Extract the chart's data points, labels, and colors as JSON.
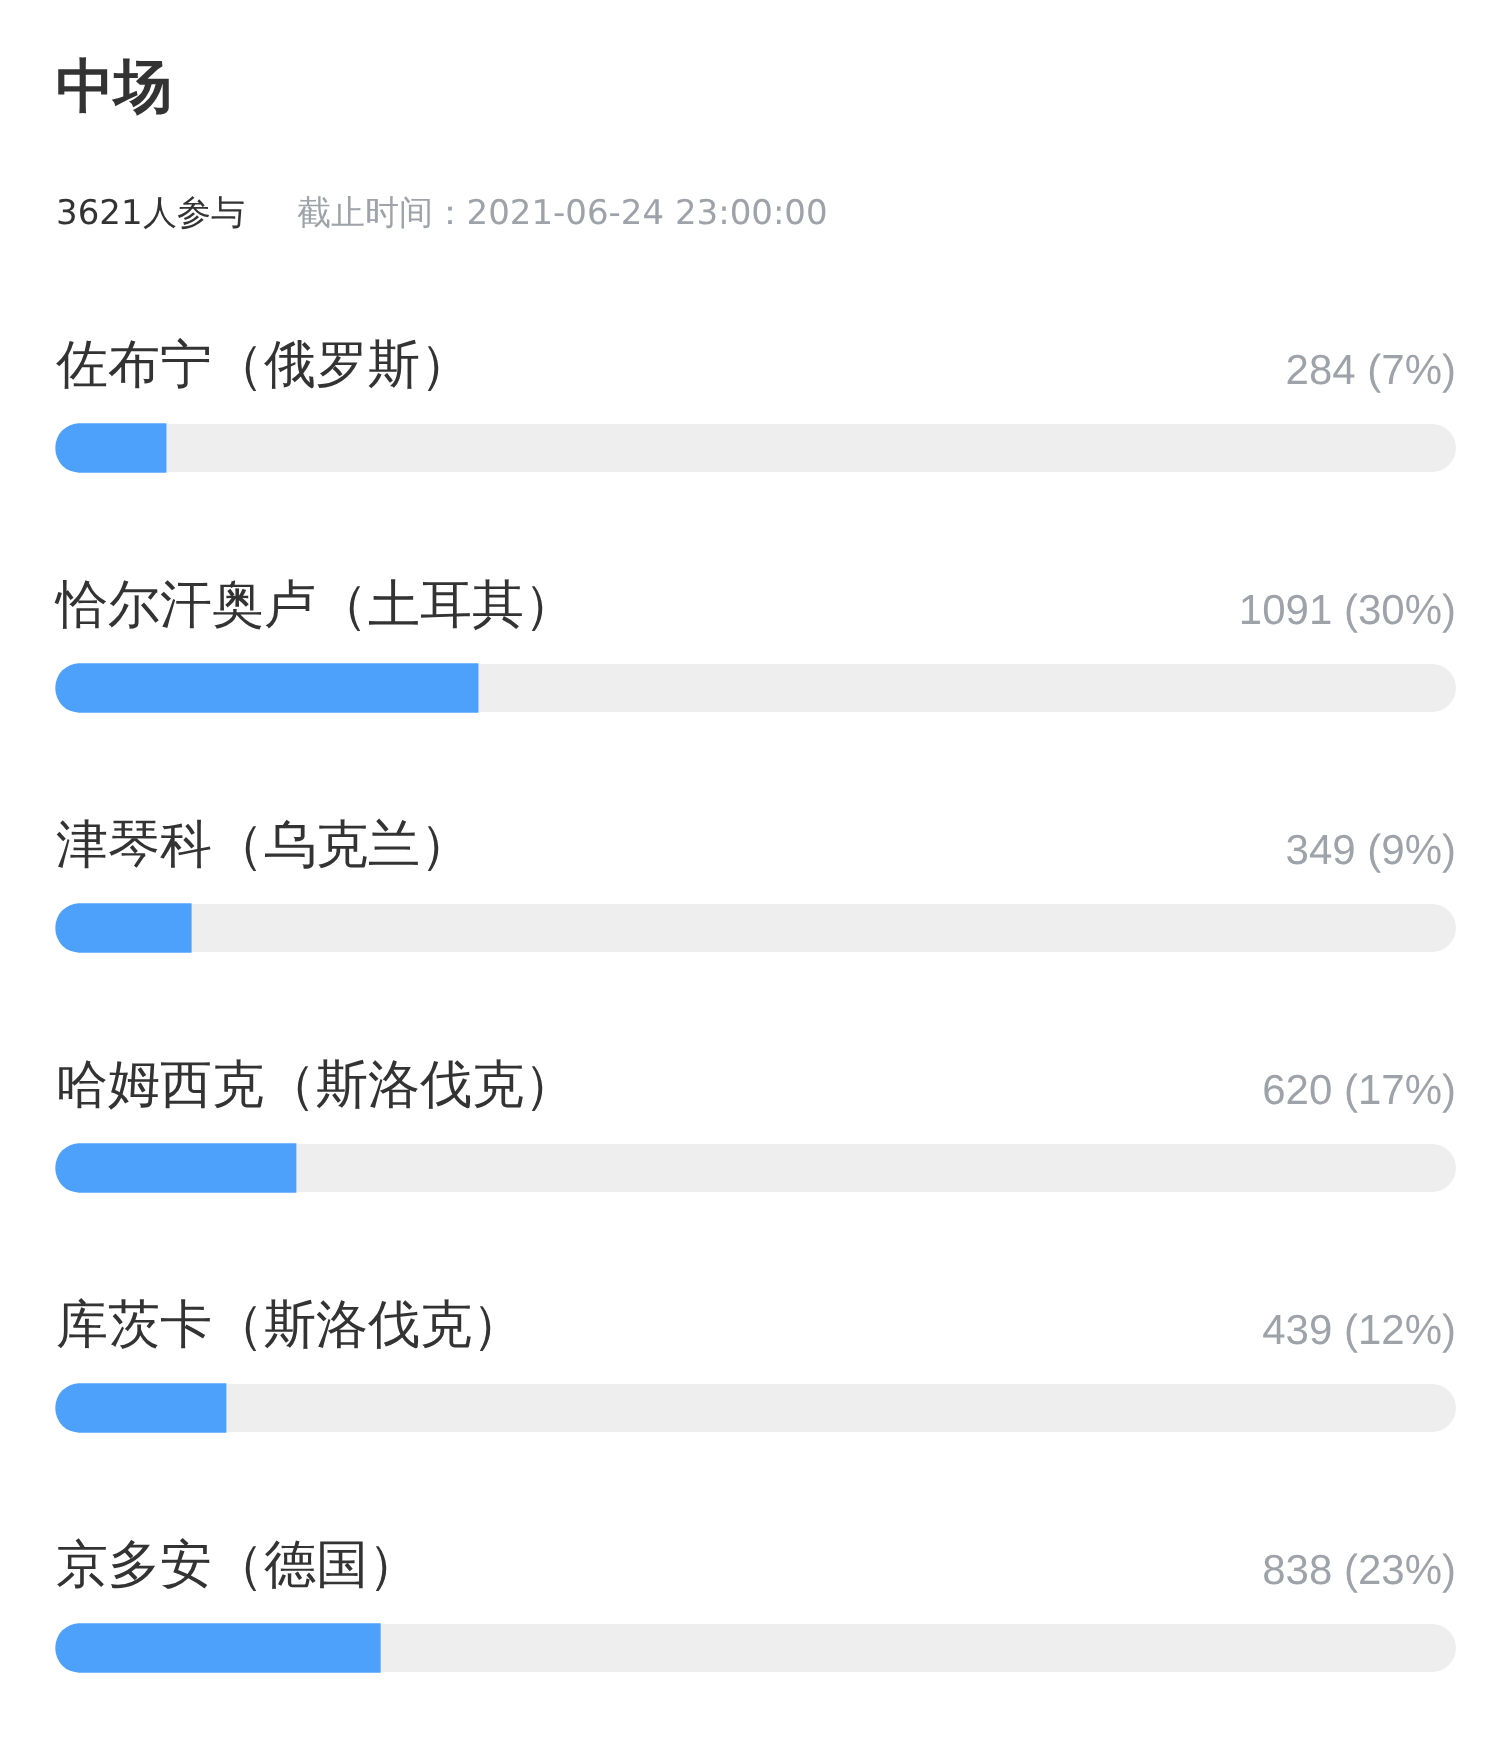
{
  "chart_data": {
    "type": "bar",
    "orientation": "horizontal",
    "title": "中场",
    "subtitle": "3621人参与",
    "annotations": [
      "截止时间：2021-06-24 23:00:00"
    ],
    "categories": [
      "佐布宁（俄罗斯）",
      "恰尔汗奥卢（土耳其）",
      "津琴科（乌克兰）",
      "哈姆西克（斯洛伐克）",
      "库茨卡（斯洛伐克）",
      "京多安（德国）"
    ],
    "values": [
      284,
      1091,
      349,
      620,
      439,
      838
    ],
    "value_labels": [
      "284 (7%)",
      "1091 (30%)",
      "349 (9%)",
      "620 (17%)",
      "439 (12%)",
      "838 (23%)"
    ],
    "color": "#4ea1fb",
    "xlim": [
      0,
      3621
    ],
    "tick_labels": "y"
  }
}
